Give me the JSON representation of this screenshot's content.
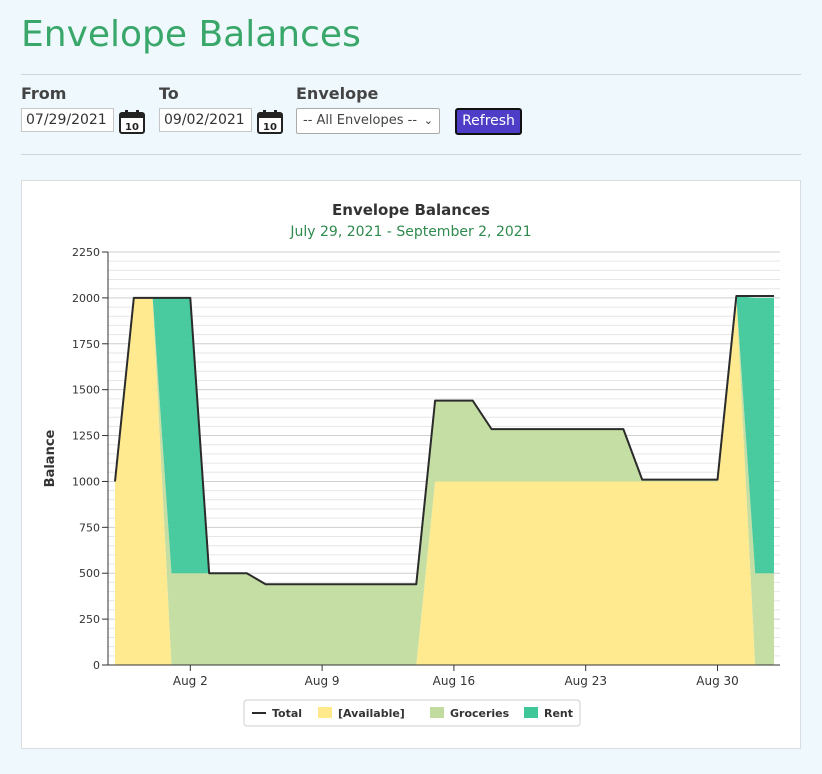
{
  "page": {
    "title": "Envelope Balances"
  },
  "filters": {
    "from_label": "From",
    "from_value": "07/29/2021",
    "to_label": "To",
    "to_value": "09/02/2021",
    "envelope_label": "Envelope",
    "envelope_selected": "-- All Envelopes --",
    "refresh_label": "Refresh",
    "calendar_day": "10"
  },
  "chart_data": {
    "type": "area",
    "title": "Envelope Balances",
    "subtitle": "July 29, 2021 - September 2, 2021",
    "ylabel": "Balance",
    "xlabel": "",
    "ylim": [
      0,
      2250
    ],
    "y_ticks": [
      0,
      250,
      500,
      750,
      1000,
      1250,
      1500,
      1750,
      2000,
      2250
    ],
    "x_ticks": [
      "Aug 2",
      "Aug 9",
      "Aug 16",
      "Aug 23",
      "Aug 30"
    ],
    "x_tick_dates": [
      "2021-08-02",
      "2021-08-09",
      "2021-08-16",
      "2021-08-23",
      "2021-08-30"
    ],
    "x_range": [
      "2021-07-29",
      "2021-09-02"
    ],
    "grid": true,
    "legend_position": "bottom",
    "stacked": true,
    "x": [
      "2021-07-29",
      "2021-07-30",
      "2021-07-31",
      "2021-08-01",
      "2021-08-02",
      "2021-08-03",
      "2021-08-04",
      "2021-08-05",
      "2021-08-06",
      "2021-08-07",
      "2021-08-08",
      "2021-08-09",
      "2021-08-10",
      "2021-08-11",
      "2021-08-12",
      "2021-08-13",
      "2021-08-14",
      "2021-08-15",
      "2021-08-16",
      "2021-08-17",
      "2021-08-18",
      "2021-08-19",
      "2021-08-20",
      "2021-08-21",
      "2021-08-22",
      "2021-08-23",
      "2021-08-24",
      "2021-08-25",
      "2021-08-26",
      "2021-08-27",
      "2021-08-28",
      "2021-08-29",
      "2021-08-30",
      "2021-08-31",
      "2021-09-01",
      "2021-09-02"
    ],
    "series": [
      {
        "name": "[Available]",
        "type": "area",
        "color": "#ffe98a",
        "values": [
          1000,
          2000,
          2000,
          0,
          0,
          0,
          0,
          0,
          0,
          0,
          0,
          0,
          0,
          0,
          0,
          0,
          0,
          1000,
          1000,
          1000,
          1000,
          1000,
          1000,
          1000,
          1000,
          1000,
          1000,
          1000,
          1000,
          1000,
          1000,
          1000,
          1000,
          2000,
          0,
          0
        ]
      },
      {
        "name": "Groceries",
        "type": "area",
        "color": "#c2dc9f",
        "values": [
          0,
          0,
          0,
          500,
          500,
          500,
          500,
          500,
          440,
          440,
          440,
          440,
          440,
          440,
          440,
          440,
          440,
          440,
          440,
          440,
          285,
          285,
          285,
          285,
          285,
          285,
          285,
          285,
          10,
          10,
          10,
          10,
          10,
          10,
          500,
          500
        ]
      },
      {
        "name": "Rent",
        "type": "area",
        "color": "#3fc79a",
        "values": [
          0,
          0,
          0,
          1500,
          1500,
          0,
          0,
          0,
          0,
          0,
          0,
          0,
          0,
          0,
          0,
          0,
          0,
          0,
          0,
          0,
          0,
          0,
          0,
          0,
          0,
          0,
          0,
          0,
          0,
          0,
          0,
          0,
          0,
          0,
          1500,
          1500
        ]
      },
      {
        "name": "Total",
        "type": "line",
        "color": "#2b2b2b",
        "values": [
          1000,
          2000,
          2000,
          2000,
          2000,
          500,
          500,
          500,
          440,
          440,
          440,
          440,
          440,
          440,
          440,
          440,
          440,
          1440,
          1440,
          1440,
          1285,
          1285,
          1285,
          1285,
          1285,
          1285,
          1285,
          1285,
          1010,
          1010,
          1010,
          1010,
          1010,
          2010,
          2010,
          2010
        ]
      }
    ],
    "legend": [
      "Total",
      "[Available]",
      "Groceries",
      "Rent"
    ]
  }
}
